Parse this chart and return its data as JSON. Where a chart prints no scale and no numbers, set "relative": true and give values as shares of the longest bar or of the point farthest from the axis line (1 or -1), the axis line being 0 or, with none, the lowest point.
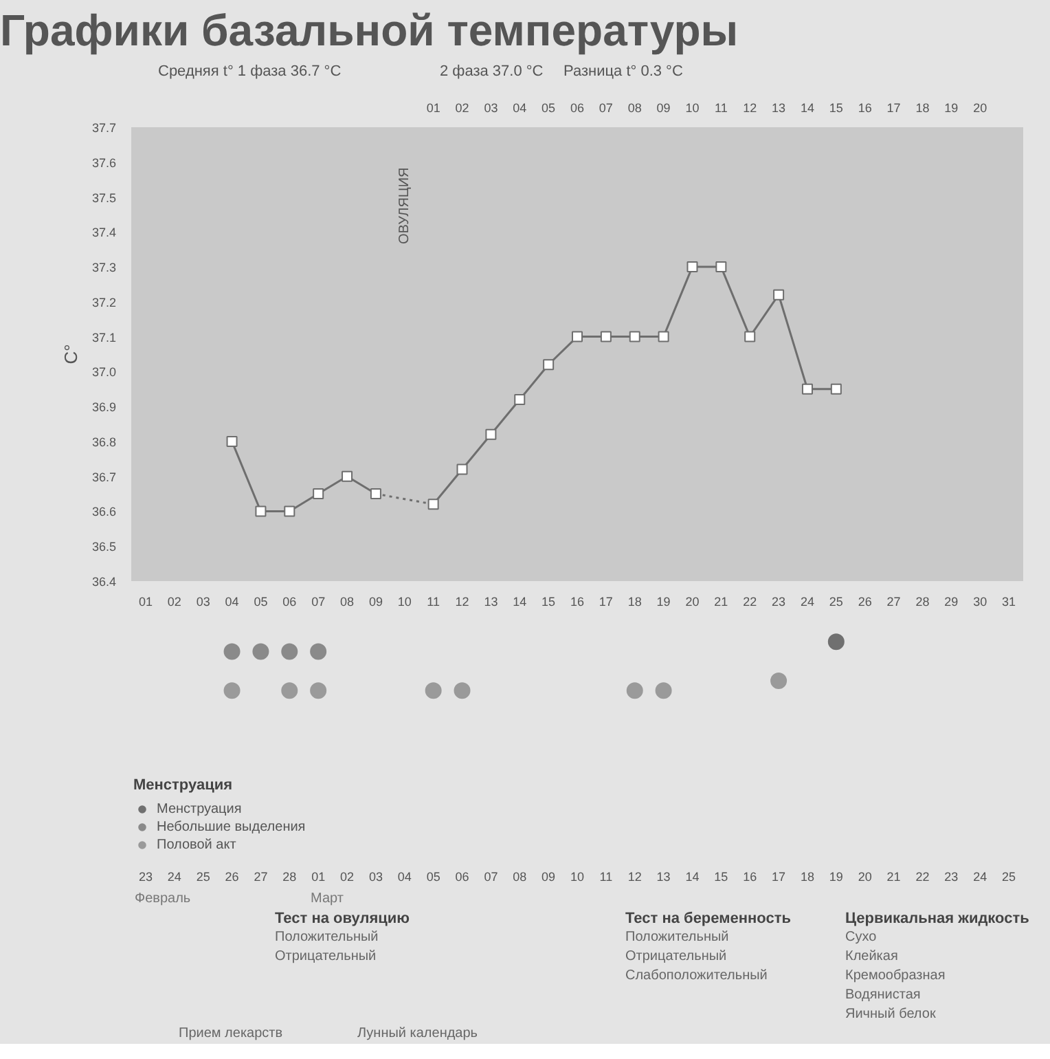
{
  "chart_data": [
    {
      "type": "line",
      "title": "Графики базальной температуры",
      "ylabel": "C°",
      "marker": "square",
      "categories": [
        "01",
        "02",
        "03",
        "04",
        "05",
        "06",
        "07",
        "08",
        "09",
        "10",
        "11",
        "12",
        "13",
        "14",
        "15",
        "16",
        "17",
        "18",
        "19",
        "20",
        "21",
        "22",
        "23",
        "24",
        "25",
        "26",
        "27",
        "28",
        "29",
        "30",
        "31"
      ],
      "series": [
        {
          "color": "#6e6e6e",
          "values": [
            null,
            null,
            null,
            36.8,
            36.6,
            36.6,
            36.65,
            36.7,
            36.65,
            null,
            36.62,
            36.72,
            36.82,
            36.92,
            37.02,
            37.1,
            37.1,
            37.1,
            37.1,
            37.3,
            37.3,
            37.1,
            37.22,
            36.95,
            36.95,
            null,
            null,
            null,
            null,
            null,
            null
          ]
        }
      ],
      "ylim": [
        36.4,
        37.7
      ],
      "yticks": [
        36.4,
        36.5,
        36.6,
        36.7,
        36.8,
        36.9,
        {
          "value": 37.0,
          "label": "37.0"
        },
        37.1,
        37.2,
        37.3,
        37.4,
        37.5,
        37.6,
        37.7
      ],
      "x2lim": [
        -9.5,
        21.5
      ],
      "x2ticks": [
        {
          "value": 1,
          "label": "01"
        },
        {
          "value": 2,
          "label": "02"
        },
        {
          "value": 3,
          "label": "03"
        },
        {
          "value": 4,
          "label": "04"
        },
        {
          "value": 5,
          "label": "05"
        },
        {
          "value": 6,
          "label": "06"
        },
        {
          "value": 7,
          "label": "07"
        },
        {
          "value": 8,
          "label": "08"
        },
        {
          "value": 9,
          "label": "09"
        },
        10,
        11,
        12,
        13,
        14,
        15,
        16,
        17,
        18,
        19,
        20
      ],
      "annotations": [
        "Средняя t° 1 фаза 36.7 °C",
        "2 фаза 37.0 °C",
        "Разница t° 0.3 °C",
        "ОВУЛЯЦИЯ"
      ]
    },
    {
      "type": "scatter",
      "marker": "circle",
      "legend": "bottom",
      "legend_title": "Менструация",
      "tick_labels": "x",
      "relative": true,
      "categories": [
        "23",
        "24",
        "25",
        "26",
        "27",
        "28",
        "01",
        "02",
        "03",
        "04",
        "05",
        "06",
        "07",
        "08",
        "09",
        "10",
        "11",
        "12",
        "13",
        "14",
        "15",
        "16",
        "17",
        "18",
        "19",
        "20",
        "21",
        "22",
        "23",
        "24",
        "25"
      ],
      "series": [
        {
          "name": "Менструация",
          "color": "#707070",
          "values": [
            null,
            null,
            null,
            null,
            null,
            null,
            null,
            null,
            null,
            null,
            null,
            null,
            null,
            null,
            null,
            null,
            null,
            null,
            null,
            null,
            null,
            null,
            null,
            null,
            1,
            null,
            null,
            null,
            null,
            null,
            null
          ]
        },
        {
          "name": "Небольшие выделения",
          "color": "#8a8a8a",
          "values": [
            null,
            null,
            null,
            0.8,
            0.8,
            0.8,
            0.8,
            null,
            null,
            null,
            null,
            null,
            null,
            null,
            null,
            null,
            null,
            null,
            null,
            null,
            null,
            null,
            null,
            null,
            null,
            null,
            null,
            null,
            null,
            null,
            null
          ]
        },
        {
          "name": "Половой акт",
          "color": "#9a9a9a",
          "values": [
            null,
            null,
            null,
            0,
            null,
            0,
            0,
            null,
            null,
            null,
            0,
            0,
            null,
            null,
            null,
            null,
            null,
            0,
            0,
            null,
            null,
            null,
            0.2,
            null,
            null,
            null,
            null,
            null,
            null,
            null,
            null
          ]
        }
      ],
      "annotations": [
        "Февраль",
        "Март",
        "Тест на овуляцию",
        "Положительный",
        "Отрицательный",
        "Тест на беременность",
        "Положительный",
        "Отрицательный",
        "Слабоположительный",
        "Цервикальная жидкость",
        "Сухо",
        "Клейкая",
        "Кремообразная",
        "Водянистая",
        "Яичный белок",
        "Прием лекарств",
        "Лунный календарь"
      ]
    }
  ]
}
